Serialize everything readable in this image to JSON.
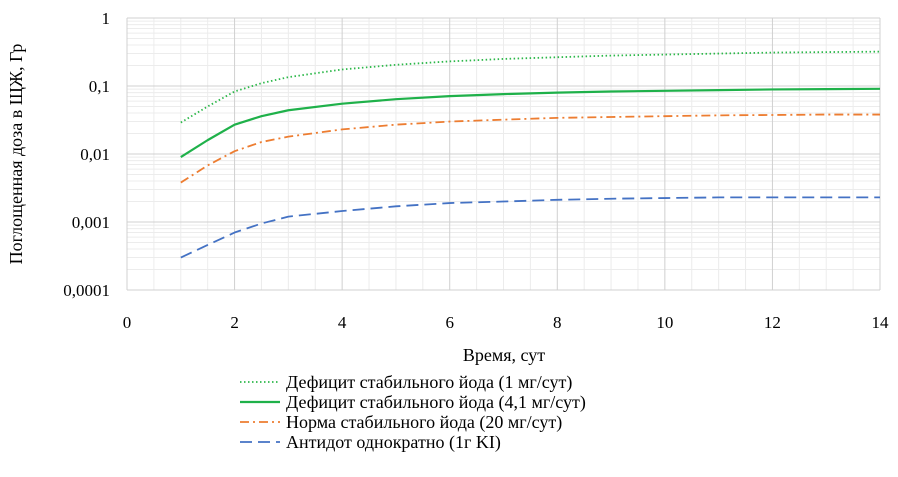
{
  "chart_data": {
    "type": "line",
    "xlabel": "Время, сут",
    "ylabel": "Поглощенная доза в ЩЖ, Гр",
    "xlim": [
      0,
      14
    ],
    "ylim": [
      0.0001,
      1
    ],
    "y_scale": "log",
    "x_ticks": [
      "0",
      "2",
      "4",
      "6",
      "8",
      "10",
      "12",
      "14"
    ],
    "y_ticks": [
      "0,0001",
      "0,001",
      "0,01",
      "0,1",
      "1"
    ],
    "grid": true,
    "legend_position": "bottom",
    "series": [
      {
        "name": "Дефицит стабильного йода (1 мг/сут)",
        "color": "#2db84a",
        "style": "dotted",
        "x": [
          1,
          1.5,
          2,
          2.5,
          3,
          4,
          5,
          6,
          7,
          8,
          9,
          10,
          11,
          12,
          13,
          14
        ],
        "y": [
          0.029,
          0.05,
          0.083,
          0.11,
          0.135,
          0.175,
          0.205,
          0.23,
          0.25,
          0.265,
          0.28,
          0.29,
          0.3,
          0.31,
          0.315,
          0.32
        ]
      },
      {
        "name": "Дефицит стабильного йода (4,1 мг/сут)",
        "color": "#1fb14a",
        "style": "solid",
        "x": [
          1,
          1.5,
          2,
          2.5,
          3,
          4,
          5,
          6,
          7,
          8,
          9,
          10,
          11,
          12,
          13,
          14
        ],
        "y": [
          0.009,
          0.016,
          0.027,
          0.036,
          0.044,
          0.055,
          0.064,
          0.071,
          0.076,
          0.08,
          0.083,
          0.085,
          0.087,
          0.089,
          0.09,
          0.091
        ]
      },
      {
        "name": "Норма стабильного йода (20 мг/сут)",
        "color": "#ed7d31",
        "style": "dashdot",
        "x": [
          1,
          1.5,
          2,
          2.5,
          3,
          4,
          5,
          6,
          7,
          8,
          9,
          10,
          11,
          12,
          13,
          14
        ],
        "y": [
          0.0038,
          0.0068,
          0.011,
          0.015,
          0.018,
          0.023,
          0.027,
          0.03,
          0.032,
          0.034,
          0.035,
          0.036,
          0.037,
          0.0375,
          0.038,
          0.038
        ]
      },
      {
        "name": "Антидот однократно (1г KI)",
        "color": "#4472c4",
        "style": "dashed",
        "x": [
          1,
          1.5,
          2,
          2.5,
          3,
          4,
          5,
          6,
          7,
          8,
          9,
          10,
          11,
          12,
          13,
          14
        ],
        "y": [
          0.0003,
          0.00046,
          0.0007,
          0.00095,
          0.0012,
          0.00145,
          0.0017,
          0.0019,
          0.002,
          0.00212,
          0.0022,
          0.00225,
          0.0023,
          0.0023,
          0.0023,
          0.0023
        ]
      }
    ]
  }
}
